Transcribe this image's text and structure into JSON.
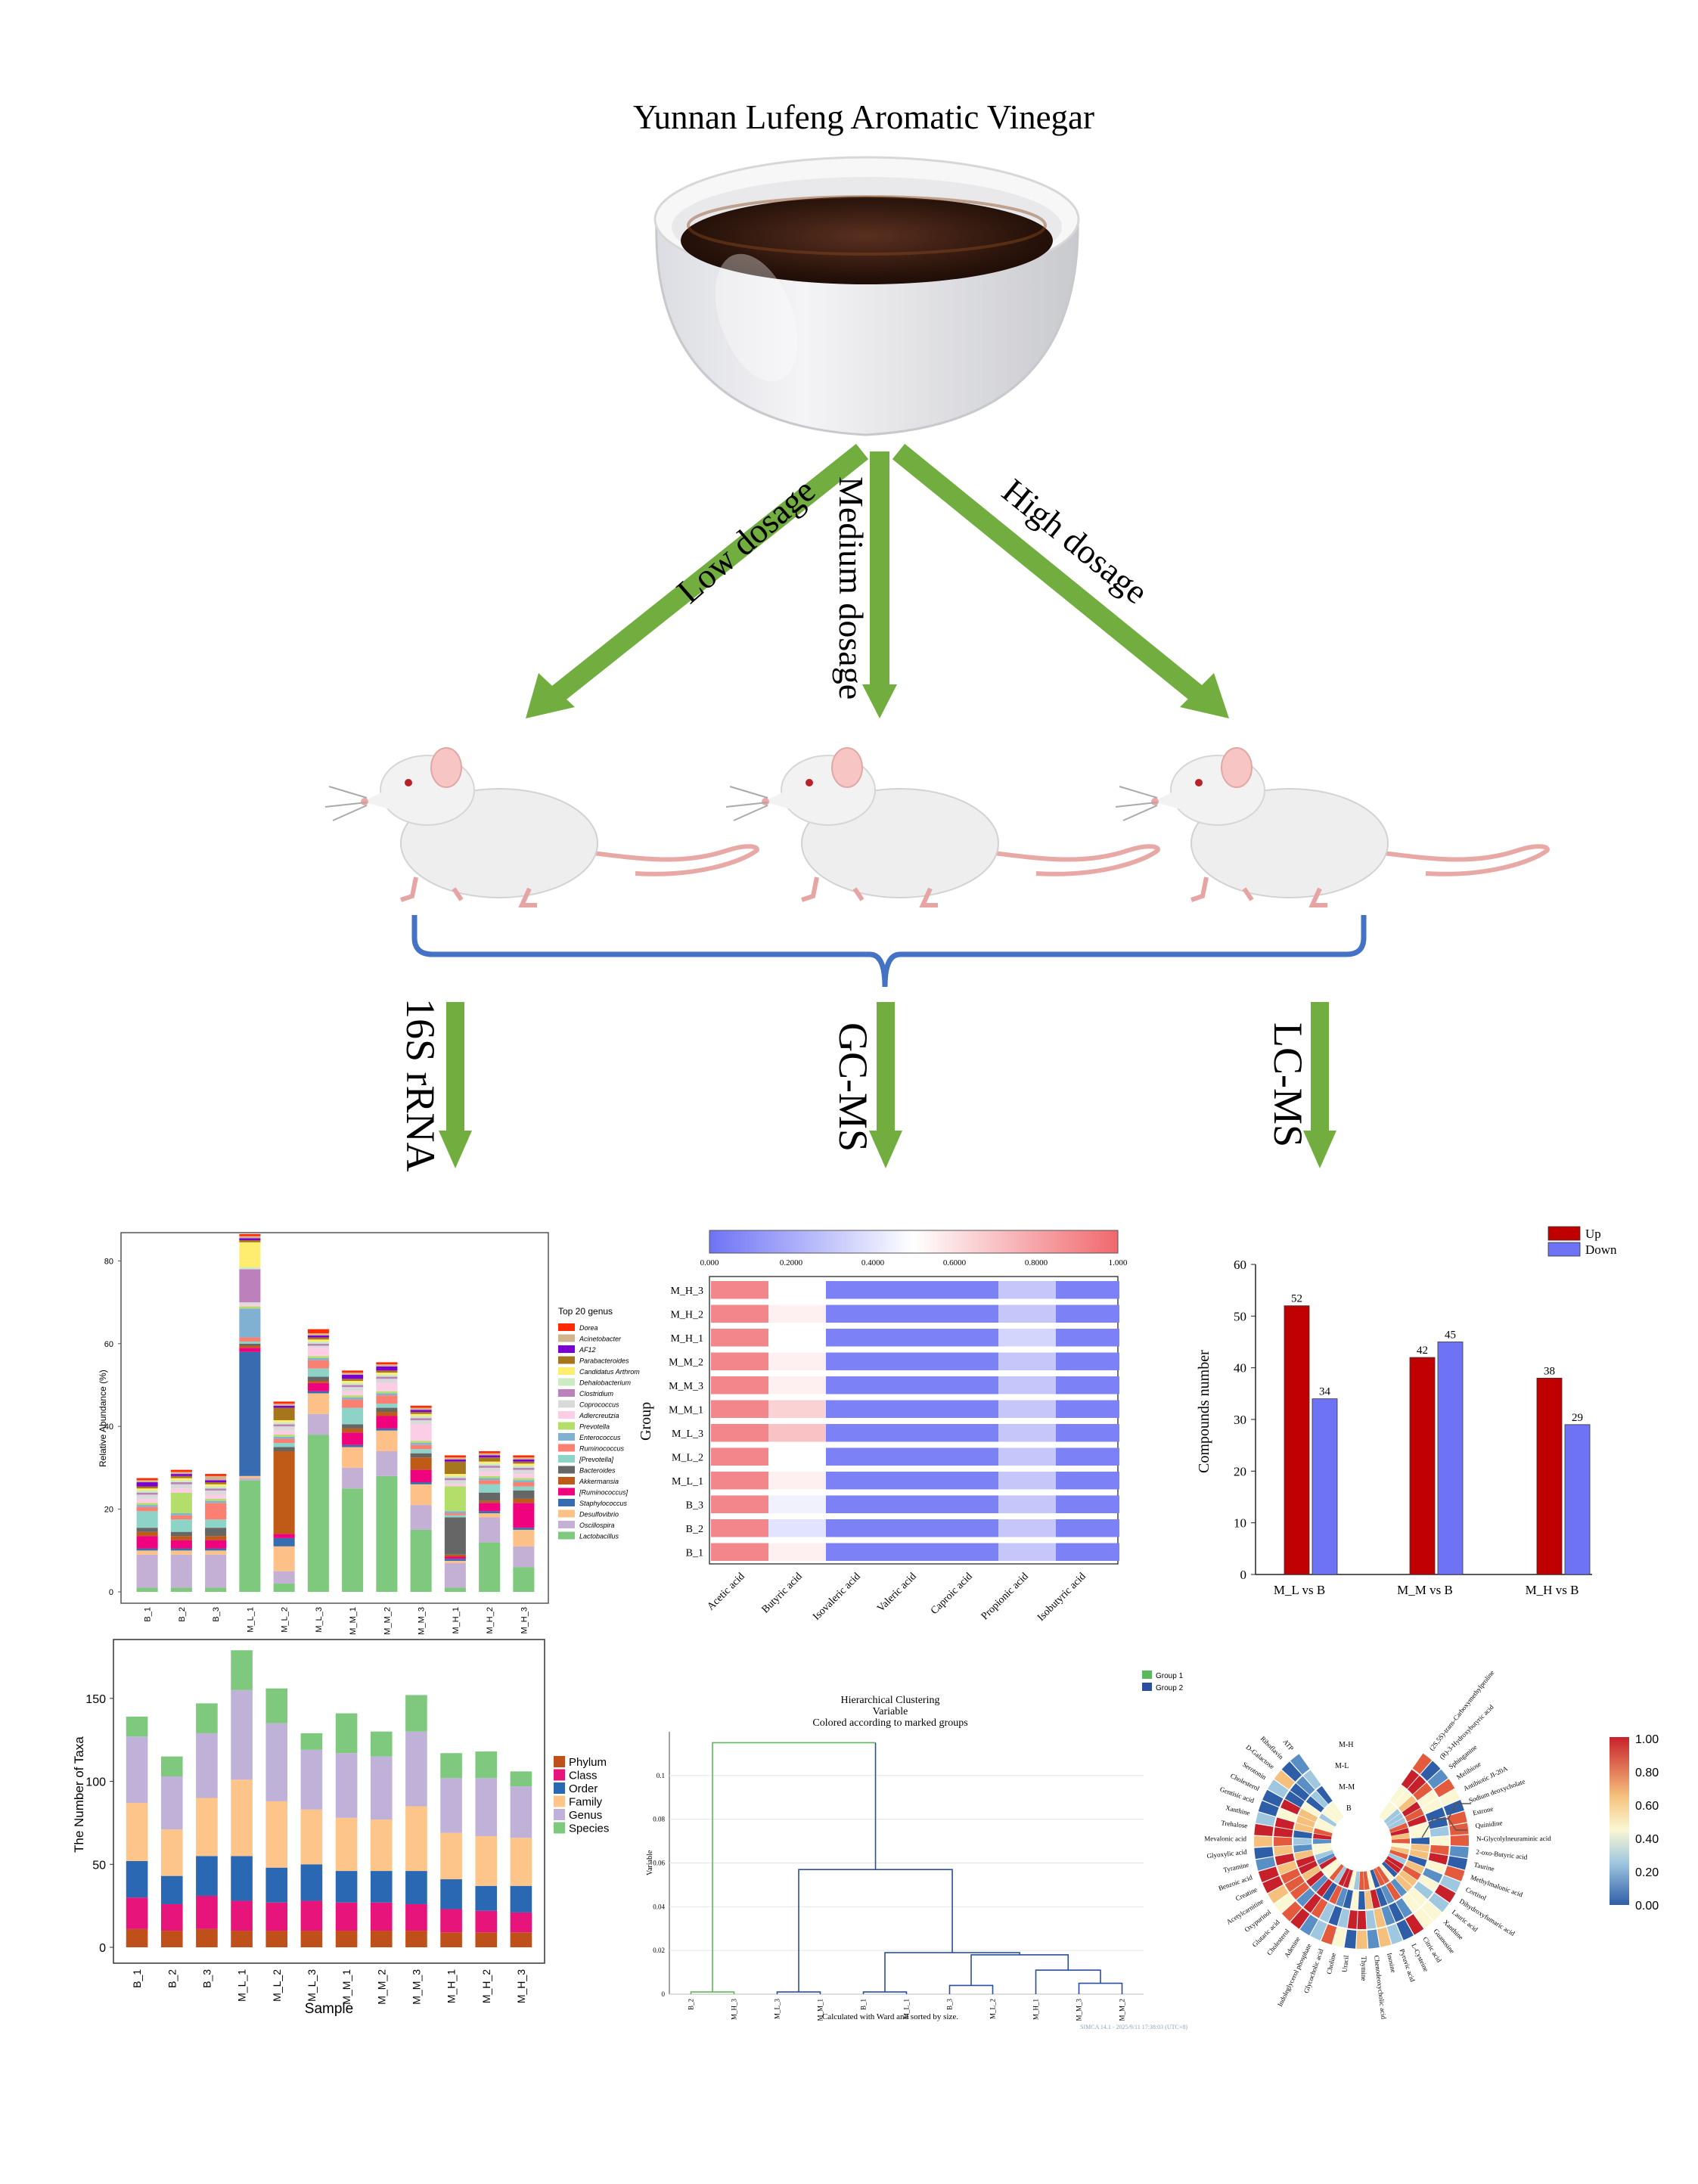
{
  "title": "Yunnan Lufeng Aromatic Vinegar",
  "dosages": [
    "Low dosage",
    "Medium dosage",
    "High dosage"
  ],
  "methods": [
    "16S rRNA",
    "GC-MS",
    "LC-MS"
  ],
  "colors": {
    "arrow": "#72ad3f",
    "brace": "#4472c4",
    "up": "#c00000",
    "down": "#6e73f5"
  },
  "chart_data": [
    {
      "type": "bar",
      "stacked": true,
      "ylabel": "Relative Abundance (%)",
      "ylim": [
        0,
        85
      ],
      "yticks": [
        0,
        20,
        40,
        60,
        80
      ],
      "categories": [
        "B_1",
        "B_2",
        "B_3",
        "M_L_1",
        "M_L_2",
        "M_L_3",
        "M_M_1",
        "M_M_2",
        "M_M_3",
        "M_H_1",
        "M_H_2",
        "M_H_3"
      ],
      "legend_title": "Top 20 genus",
      "legend_position": "right",
      "series": [
        {
          "name": "Lactobacillus",
          "color": "#7fc97f",
          "values": [
            1,
            1,
            1,
            27,
            2,
            38,
            25,
            28,
            15,
            1,
            12,
            6
          ]
        },
        {
          "name": "Oscillospira",
          "color": "#c5b0d5",
          "values": [
            8,
            8,
            8,
            0.5,
            3,
            5,
            5,
            6,
            6,
            6,
            6,
            5
          ]
        },
        {
          "name": "Desulfovibrio",
          "color": "#fdc086",
          "values": [
            1,
            1,
            1,
            0.5,
            6,
            5,
            5,
            5,
            5,
            0.5,
            1,
            4
          ]
        },
        {
          "name": "Staphylococcus",
          "color": "#386cb0",
          "values": [
            0.5,
            0.5,
            0.5,
            30,
            2,
            0.5,
            0.5,
            0.5,
            0.5,
            0.5,
            0.5,
            0.5
          ]
        },
        {
          "name": "[Ruminococcus]",
          "color": "#f0027f",
          "values": [
            3,
            2,
            2,
            1,
            1,
            2,
            3,
            3,
            3,
            0.5,
            2,
            6
          ]
        },
        {
          "name": "Akkermansia",
          "color": "#bf5b17",
          "values": [
            1,
            1,
            1,
            0.5,
            20,
            0.5,
            1,
            1,
            3,
            0.5,
            0.5,
            1
          ]
        },
        {
          "name": "Bacteroides",
          "color": "#666666",
          "values": [
            1,
            1,
            2,
            0.5,
            1,
            1,
            1,
            1,
            1,
            9,
            2,
            2
          ]
        },
        {
          "name": "[Prevotella]",
          "color": "#8dd3c7",
          "values": [
            4,
            3,
            2,
            0.5,
            1,
            2,
            4,
            1,
            1,
            0.5,
            2,
            1
          ]
        },
        {
          "name": "Ruminococcus",
          "color": "#fb8072",
          "values": [
            1,
            1,
            4,
            1,
            1,
            2,
            2,
            2,
            1,
            0.5,
            1,
            1
          ]
        },
        {
          "name": "Enterococcus",
          "color": "#80b1d3",
          "values": [
            0.5,
            0.5,
            0.5,
            7,
            0.5,
            0.5,
            0.5,
            0.5,
            0.5,
            0.5,
            0.5,
            0.5
          ]
        },
        {
          "name": "Prevotella",
          "color": "#b3de69",
          "values": [
            0.5,
            5,
            0.5,
            0.5,
            0.5,
            0.5,
            0.5,
            0.5,
            0.5,
            6,
            0.5,
            0.5
          ]
        },
        {
          "name": "Adlercreutzia",
          "color": "#fccde5",
          "values": [
            1,
            1,
            1,
            0.5,
            1,
            2,
            1,
            2,
            4,
            0.5,
            1,
            1
          ]
        },
        {
          "name": "Coprococcus",
          "color": "#d9d9d9",
          "values": [
            1,
            1,
            1,
            0.5,
            1,
            0.5,
            1,
            1,
            1,
            1,
            1,
            1
          ]
        },
        {
          "name": "Clostridium",
          "color": "#bc80bd",
          "values": [
            0.5,
            0.5,
            0.5,
            8,
            0.5,
            0.5,
            0.5,
            0.5,
            0.5,
            0.5,
            0.5,
            0.5
          ]
        },
        {
          "name": "Dehalobacterium",
          "color": "#ccebc5",
          "values": [
            0.5,
            0.5,
            0.5,
            0.5,
            0.5,
            0.5,
            0.5,
            0.5,
            0.5,
            0.5,
            0.5,
            0.5
          ]
        },
        {
          "name": "Candidatus Arthrom",
          "color": "#ffed6f",
          "values": [
            0.5,
            0.5,
            0.5,
            6,
            0.5,
            0.5,
            0.5,
            0.5,
            0.5,
            0.5,
            0.5,
            0.5
          ]
        },
        {
          "name": "Parabacteroides",
          "color": "#a6761d",
          "values": [
            0.5,
            0.5,
            0.5,
            0.5,
            3,
            0.5,
            0.5,
            0.5,
            0.5,
            3,
            1,
            0.5
          ]
        },
        {
          "name": "AF12",
          "color": "#7b00d4",
          "values": [
            1,
            0.5,
            0.5,
            0.5,
            0.5,
            0.5,
            1,
            1,
            0.5,
            0.5,
            0.5,
            0.5
          ]
        },
        {
          "name": "Acinetobacter",
          "color": "#d2b48c",
          "values": [
            0.5,
            0.5,
            1,
            0.5,
            0.5,
            0.5,
            0.5,
            0.5,
            0.5,
            0.5,
            0.5,
            0.5
          ]
        },
        {
          "name": "Dorea",
          "color": "#ff2a00",
          "values": [
            0.5,
            0.5,
            0.5,
            0.5,
            0.5,
            1,
            0.5,
            0.5,
            0.5,
            0.5,
            0.5,
            0.5
          ]
        }
      ]
    },
    {
      "type": "heatmap",
      "ylabel": "Group",
      "rows": [
        "M_H_3",
        "M_H_2",
        "M_H_1",
        "M_M_2",
        "M_M_3",
        "M_M_1",
        "M_L_3",
        "M_L_2",
        "M_L_1",
        "B_3",
        "B_2",
        "B_1"
      ],
      "columns": [
        "Acetic acid",
        "Butyric acid",
        "Isovaleric acid",
        "Valeric acid",
        "Caproic acid",
        "Propionic acid",
        "Isobutyric acid"
      ],
      "colorbar_ticks": [
        "0.000",
        "0.2000",
        "0.4000",
        "0.6000",
        "0.8000",
        "1.000"
      ],
      "values": [
        [
          0.9,
          0.5,
          0.05,
          0.05,
          0.05,
          0.3,
          0.05
        ],
        [
          0.9,
          0.55,
          0.05,
          0.05,
          0.05,
          0.3,
          0.05
        ],
        [
          0.9,
          0.5,
          0.05,
          0.05,
          0.05,
          0.35,
          0.05
        ],
        [
          0.9,
          0.55,
          0.05,
          0.05,
          0.05,
          0.3,
          0.05
        ],
        [
          0.9,
          0.55,
          0.05,
          0.05,
          0.05,
          0.3,
          0.05
        ],
        [
          0.9,
          0.65,
          0.05,
          0.05,
          0.05,
          0.3,
          0.05
        ],
        [
          0.9,
          0.7,
          0.05,
          0.05,
          0.05,
          0.3,
          0.05
        ],
        [
          0.9,
          0.5,
          0.05,
          0.05,
          0.05,
          0.3,
          0.05
        ],
        [
          0.9,
          0.55,
          0.05,
          0.05,
          0.05,
          0.3,
          0.05
        ],
        [
          0.9,
          0.45,
          0.05,
          0.05,
          0.05,
          0.3,
          0.05
        ],
        [
          0.9,
          0.4,
          0.05,
          0.05,
          0.05,
          0.3,
          0.05
        ],
        [
          0.9,
          0.55,
          0.05,
          0.05,
          0.05,
          0.3,
          0.05
        ]
      ]
    },
    {
      "type": "bar",
      "ylabel": "Compounds number",
      "ylim": [
        0,
        60
      ],
      "yticks": [
        0,
        10,
        20,
        30,
        40,
        50,
        60
      ],
      "categories": [
        "M_L vs B",
        "M_M vs B",
        "M_H vs B"
      ],
      "legend_position": "top-right",
      "series": [
        {
          "name": "Up",
          "color": "#c00000",
          "values": [
            52,
            42,
            38
          ]
        },
        {
          "name": "Down",
          "color": "#6e73f5",
          "values": [
            34,
            45,
            29
          ]
        }
      ]
    },
    {
      "type": "bar",
      "stacked": true,
      "xlabel": "Sample",
      "ylabel": "The Number of Taxa",
      "ylim": [
        0,
        180
      ],
      "yticks": [
        0,
        50,
        100,
        150
      ],
      "categories": [
        "B_1",
        "B_2",
        "B_3",
        "M_L_1",
        "M_L_2",
        "M_L_3",
        "M_M_1",
        "M_M_2",
        "M_M_3",
        "M_H_1",
        "M_H_2",
        "M_H_3"
      ],
      "legend_position": "right",
      "series": [
        {
          "name": "Phylum",
          "color": "#c0501a",
          "values": [
            11,
            10,
            11,
            10,
            10,
            10,
            10,
            10,
            10,
            9,
            9,
            9
          ]
        },
        {
          "name": "Class",
          "color": "#e7157b",
          "values": [
            19,
            16,
            20,
            18,
            17,
            18,
            17,
            17,
            16,
            14,
            13,
            12
          ]
        },
        {
          "name": "Order",
          "color": "#2a68b4",
          "values": [
            22,
            17,
            24,
            27,
            21,
            22,
            19,
            19,
            20,
            18,
            15,
            16
          ]
        },
        {
          "name": "Family",
          "color": "#fdc58a",
          "values": [
            35,
            28,
            35,
            46,
            40,
            33,
            32,
            31,
            39,
            28,
            30,
            29
          ]
        },
        {
          "name": "Genus",
          "color": "#c0b1d8",
          "values": [
            40,
            32,
            39,
            54,
            47,
            36,
            39,
            38,
            45,
            33,
            35,
            31
          ]
        },
        {
          "name": "Species",
          "color": "#7fc97f",
          "values": [
            12,
            12,
            18,
            24,
            21,
            10,
            24,
            15,
            22,
            15,
            16,
            9
          ]
        }
      ]
    },
    {
      "type": "dendrogram",
      "title": "Hierarchical Clustering",
      "subtitle": "Variable",
      "subtitle2": "Colored according to marked groups",
      "ylabel": "Variable",
      "caption": "Calculated with Ward and sorted by size.",
      "footer": "SIMCA 14.1 - 2025/9/11 17:38:03 (UTC+8)",
      "ylim": [
        0,
        0.12
      ],
      "yticks": [
        "0",
        "0.02",
        "0.04",
        "0.06",
        "0.08",
        "0.1"
      ],
      "leaves": [
        "B_2",
        "M_H_3",
        "M_L_3",
        "M_M_1",
        "B_1",
        "M_L_1",
        "B_3",
        "M_L_2",
        "M_H_1",
        "M_M_3",
        "M_M_2"
      ],
      "groups": [
        {
          "name": "Group 1",
          "color": "#5cb85c"
        },
        {
          "name": "Group 2",
          "color": "#2a4fa0"
        }
      ]
    },
    {
      "type": "heatmap",
      "shape": "circular",
      "ring_labels": [
        "M-H",
        "M-L",
        "M-M",
        "B"
      ],
      "colorbar_ticks": [
        "1.00",
        "0.80",
        "0.60",
        "0.40",
        "0.20",
        "0.00"
      ],
      "metabolites": [
        "(2S,5S)-trans-Carboxymethylproline",
        "(R)-3-Hydroxybutyric acid",
        "Sphinganine",
        "Melibiose",
        "Antibiotic JI-20A",
        "Sodium deoxycholate",
        "Estrone",
        "Quinidine",
        "N-Glycolylneuraminic acid",
        "2-oxo-Butyric acid",
        "Taurine",
        "Methylmalonic acid",
        "Cortisol",
        "Dihydroxyfumaric acid",
        "Lauric acid",
        "Xanthine",
        "Guanosine",
        "Citric acid",
        "L-Cysteine",
        "Pyruvic acid",
        "Inosine",
        "Chenodeoxycholic acid",
        "Thymine",
        "Uracil",
        "Choline",
        "Glycocholic acid",
        "Indoleglycerol phosphate",
        "Adenine",
        "Cholesterol",
        "Glutaric acid",
        "Oxypurinol",
        "Acetylcarnitine",
        "Creatine",
        "Benzoic acid",
        "Tyramine",
        "Glyoxylic acid",
        "Mevalonic acid",
        "Trehalose",
        "Xanthine",
        "Gentisic acid",
        "Cholesterol",
        "Serotonin",
        "D-Galactose",
        "Riboflavin",
        "ATP"
      ]
    }
  ]
}
